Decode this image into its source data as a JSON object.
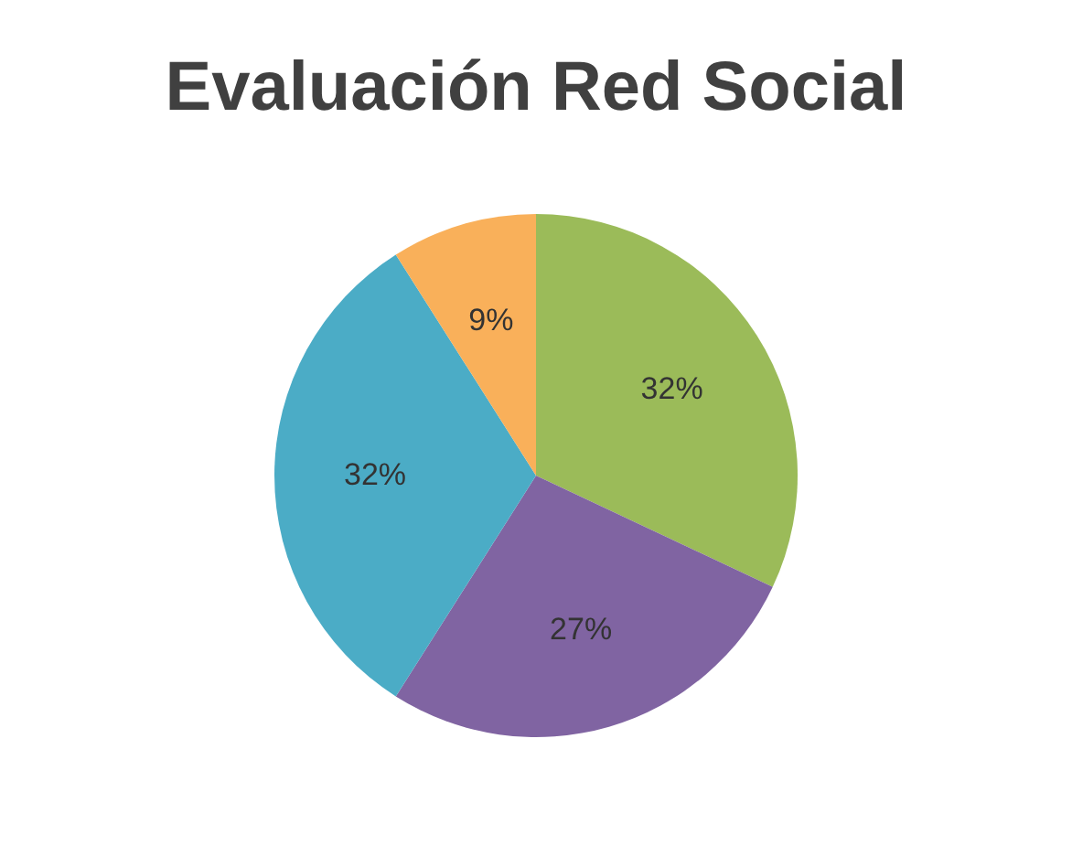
{
  "chart_data": {
    "type": "pie",
    "title": "Evaluación Red Social",
    "categories": [
      null,
      null,
      null,
      null
    ],
    "values": [
      32,
      27,
      32,
      9
    ],
    "colors": [
      "#9bbb59",
      "#8064a2",
      "#4bacc6",
      "#f9b05a"
    ],
    "value_labels": [
      "32%",
      "27%",
      "32%",
      "9%"
    ],
    "legend": false
  }
}
